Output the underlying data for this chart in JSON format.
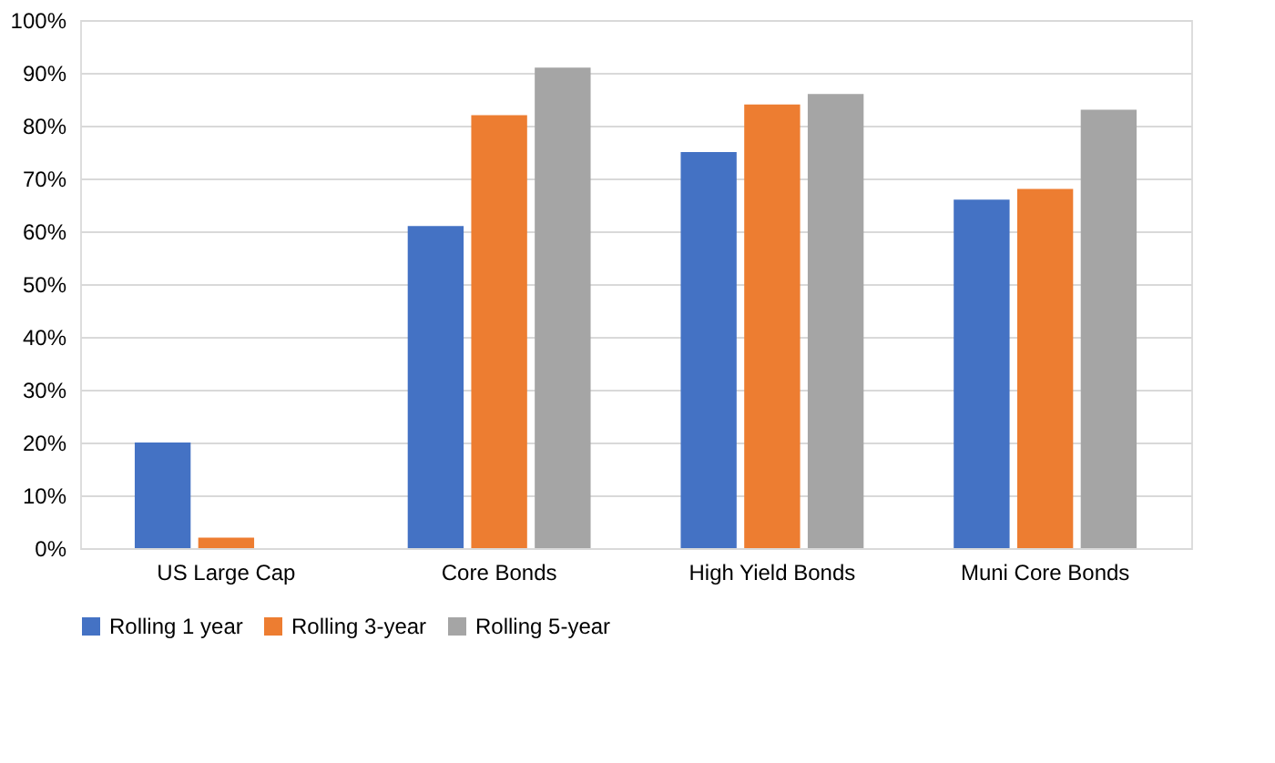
{
  "chart_data": {
    "type": "bar",
    "categories": [
      "US Large Cap",
      "Core Bonds",
      "High Yield Bonds",
      "Muni Core Bonds"
    ],
    "series": [
      {
        "name": "Rolling 1 year",
        "color": "#4472c4",
        "values": [
          20,
          61,
          75,
          66
        ]
      },
      {
        "name": "Rolling 3-year",
        "color": "#ed7d31",
        "values": [
          2,
          82,
          84,
          68
        ]
      },
      {
        "name": "Rolling 5-year",
        "color": "#a5a5a5",
        "values": [
          0,
          91,
          86,
          83
        ]
      }
    ],
    "ylim": [
      0,
      100
    ],
    "yticks": [
      {
        "value": 0,
        "label": "0%"
      },
      {
        "value": 10,
        "label": "10%"
      },
      {
        "value": 20,
        "label": "20%"
      },
      {
        "value": 30,
        "label": "30%"
      },
      {
        "value": 40,
        "label": "40%"
      },
      {
        "value": 50,
        "label": "50%"
      },
      {
        "value": 60,
        "label": "60%"
      },
      {
        "value": 70,
        "label": "70%"
      },
      {
        "value": 80,
        "label": "80%"
      },
      {
        "value": 90,
        "label": "90%"
      },
      {
        "value": 100,
        "label": "100%"
      }
    ],
    "grid": "y",
    "legend": "bottom"
  }
}
